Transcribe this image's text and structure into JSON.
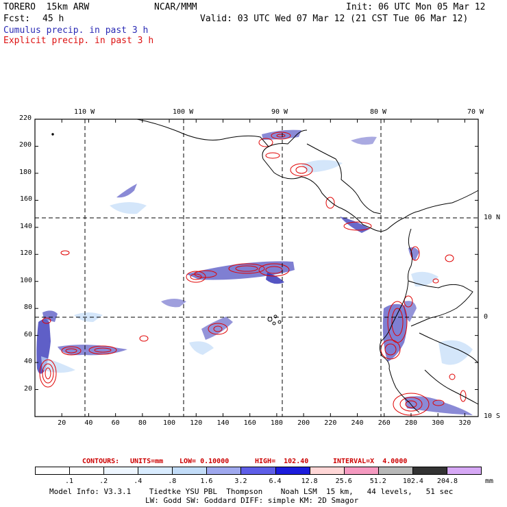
{
  "header": {
    "model": "TORERO  15km ARW",
    "center": "NCAR/MMM",
    "init": "Init: 06 UTC Mon 05 Mar 12",
    "fcst_label": "Fcst:",
    "fcst_value": "45 h",
    "valid": "Valid: 03 UTC Wed 07 Mar 12 (21 CST Tue 06 Mar 12)",
    "legend_cumulus": "Cumulus precip. in past 3 h",
    "legend_explicit": "Explicit precip. in past 3 h"
  },
  "map": {
    "top_lon_labels": [
      "110 W",
      "100 W",
      "90 W",
      "80 W",
      "70 W"
    ],
    "right_lat_labels": [
      "10 N",
      "0",
      "10 S"
    ],
    "y_ticks": [
      "220",
      "200",
      "180",
      "160",
      "140",
      "120",
      "100",
      "80",
      "60",
      "40",
      "20"
    ],
    "x_ticks": [
      "20",
      "40",
      "60",
      "80",
      "100",
      "120",
      "140",
      "160",
      "180",
      "200",
      "220",
      "240",
      "260",
      "280",
      "300",
      "320"
    ],
    "y_range": [
      0,
      220
    ],
    "x_range": [
      0,
      330
    ],
    "colors": {
      "cumulus": "#2a2ab4",
      "explicit": "#e00000",
      "coast": "#000000",
      "grid": "#000000"
    }
  },
  "contours_line": {
    "prefix": "CONTOURS:",
    "units": "UNITS=mm",
    "low": "LOW= 0.10000",
    "high": "HIGH=  102.40",
    "interval": "INTERVAL=X  4.0000"
  },
  "colorbar": {
    "unit": "mm",
    "labels": [
      ".1",
      ".2",
      ".4",
      ".8",
      "1.6",
      "3.2",
      "6.4",
      "12.8",
      "25.6",
      "51.2",
      "102.4",
      "204.8"
    ],
    "colors": [
      "#ffffff",
      "#ffffff",
      "#eef6ff",
      "#d9ecff",
      "#c2dcf8",
      "#9fa8ee",
      "#5e5ee8",
      "#1c1cdc",
      "#ffd6d6",
      "#f59ac0",
      "#b8b8b8",
      "#333333",
      "#d6a8f5"
    ]
  },
  "model_info": {
    "line1": "Model Info: V3.3.1    Tiedtke YSU PBL  Thompson    Noah LSM  15 km,   44 levels,   51 sec",
    "line2": "LW: Godd SW: Goddard DIFF: simple KM: 2D Smagor"
  }
}
